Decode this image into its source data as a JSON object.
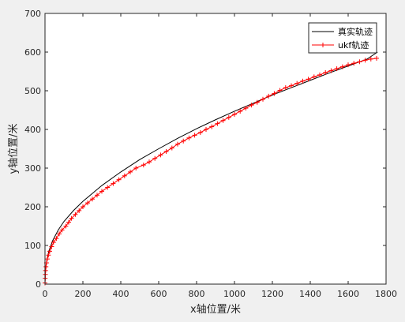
{
  "chart_data": {
    "type": "line",
    "title": "",
    "xlabel": "x轴位置/米",
    "ylabel": "y轴位置/米",
    "xlim": [
      0,
      1800
    ],
    "ylim": [
      0,
      700
    ],
    "xticks": [
      0,
      200,
      400,
      600,
      800,
      1000,
      1200,
      1400,
      1600,
      1800
    ],
    "yticks": [
      0,
      100,
      200,
      300,
      400,
      500,
      600,
      700
    ],
    "grid": false,
    "legend_position": "top-right",
    "series": [
      {
        "name": "真实轨迹",
        "color": "#000000",
        "marker": "none",
        "points": [
          [
            0,
            0
          ],
          [
            2,
            30
          ],
          [
            5,
            45
          ],
          [
            10,
            62
          ],
          [
            20,
            85
          ],
          [
            40,
            112
          ],
          [
            70,
            140
          ],
          [
            100,
            162
          ],
          [
            150,
            190
          ],
          [
            200,
            214
          ],
          [
            300,
            255
          ],
          [
            400,
            290
          ],
          [
            500,
            322
          ],
          [
            600,
            350
          ],
          [
            700,
            377
          ],
          [
            800,
            402
          ],
          [
            900,
            425
          ],
          [
            1000,
            447
          ],
          [
            1100,
            468
          ],
          [
            1200,
            489
          ],
          [
            1300,
            508
          ],
          [
            1400,
            527
          ],
          [
            1500,
            546
          ],
          [
            1600,
            564
          ],
          [
            1700,
            582
          ],
          [
            1755,
            600
          ]
        ]
      },
      {
        "name": "ukf轨迹",
        "color": "#ff0000",
        "marker": "plus",
        "points": [
          [
            0,
            3
          ],
          [
            1,
            15
          ],
          [
            2,
            25
          ],
          [
            3,
            35
          ],
          [
            5,
            45
          ],
          [
            8,
            55
          ],
          [
            12,
            65
          ],
          [
            18,
            75
          ],
          [
            25,
            85
          ],
          [
            35,
            97
          ],
          [
            45,
            108
          ],
          [
            60,
            118
          ],
          [
            75,
            130
          ],
          [
            90,
            140
          ],
          [
            110,
            150
          ],
          [
            125,
            160
          ],
          [
            140,
            170
          ],
          [
            160,
            180
          ],
          [
            180,
            190
          ],
          [
            200,
            200
          ],
          [
            225,
            210
          ],
          [
            250,
            220
          ],
          [
            275,
            230
          ],
          [
            300,
            240
          ],
          [
            330,
            250
          ],
          [
            360,
            260
          ],
          [
            390,
            270
          ],
          [
            420,
            280
          ],
          [
            450,
            290
          ],
          [
            480,
            300
          ],
          [
            520,
            308
          ],
          [
            550,
            316
          ],
          [
            580,
            325
          ],
          [
            610,
            334
          ],
          [
            640,
            343
          ],
          [
            670,
            352
          ],
          [
            700,
            362
          ],
          [
            730,
            370
          ],
          [
            760,
            378
          ],
          [
            790,
            385
          ],
          [
            820,
            392
          ],
          [
            850,
            400
          ],
          [
            880,
            407
          ],
          [
            910,
            415
          ],
          [
            940,
            423
          ],
          [
            970,
            431
          ],
          [
            1000,
            439
          ],
          [
            1030,
            447
          ],
          [
            1060,
            455
          ],
          [
            1090,
            463
          ],
          [
            1120,
            470
          ],
          [
            1150,
            478
          ],
          [
            1180,
            486
          ],
          [
            1210,
            493
          ],
          [
            1240,
            501
          ],
          [
            1270,
            508
          ],
          [
            1300,
            513
          ],
          [
            1330,
            519
          ],
          [
            1360,
            525
          ],
          [
            1390,
            530
          ],
          [
            1420,
            536
          ],
          [
            1450,
            541
          ],
          [
            1480,
            547
          ],
          [
            1510,
            552
          ],
          [
            1540,
            557
          ],
          [
            1570,
            562
          ],
          [
            1600,
            567
          ],
          [
            1630,
            571
          ],
          [
            1660,
            575
          ],
          [
            1690,
            579
          ],
          [
            1720,
            582
          ],
          [
            1750,
            584
          ]
        ]
      }
    ]
  }
}
